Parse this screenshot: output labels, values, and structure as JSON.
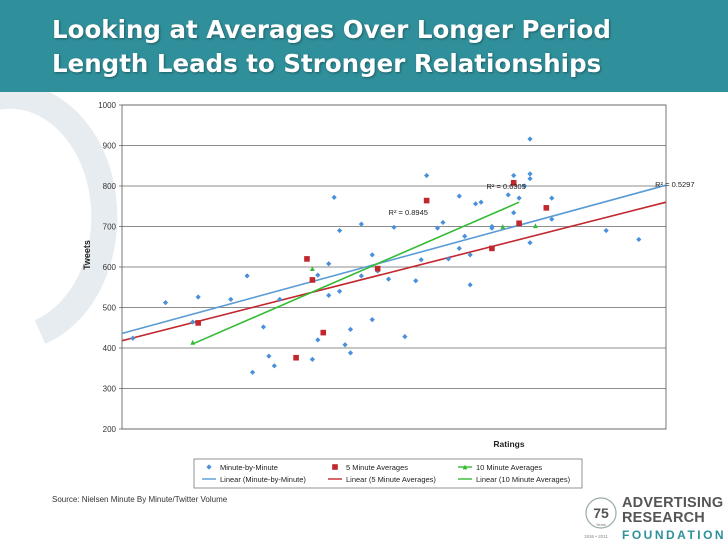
{
  "slide": {
    "title_line1": "Looking at Averages Over Longer Period",
    "title_line2": "Length Leads to Stronger Relationships",
    "source": "Source: Nielsen Minute By Minute/Twitter Volume",
    "colors": {
      "banner": "#2f8f9a",
      "minute": "#4a90d9",
      "five": "#c1272d",
      "ten": "#33bb33"
    }
  },
  "logo": {
    "line1": "ADVERTISING",
    "line2": "RESEARCH",
    "line3": "FOUNDATION",
    "badge_number": "75",
    "badge_years": "Years",
    "badge_range": "1936 • 2011"
  },
  "chart_data": {
    "type": "scatter",
    "title": "",
    "xlabel": "Ratings",
    "ylabel": "Tweets",
    "ylim": [
      200,
      1000
    ],
    "yticks": [
      "200",
      "300",
      "400",
      "500",
      "600",
      "700",
      "800",
      "900",
      "1000"
    ],
    "xlim": [
      0,
      100
    ],
    "r2_labels": [
      {
        "text": "R² = 0.5297",
        "series": "Minute-by-Minute",
        "x": 98,
        "y": 797
      },
      {
        "text": "R² = 0.6305",
        "series": "5 Minute Averages",
        "x": 67,
        "y": 792
      },
      {
        "text": "R² = 0.8945",
        "series": "10 Minute Averages",
        "x": 49,
        "y": 728
      }
    ],
    "series": [
      {
        "name": "Minute-by-Minute",
        "marker": "diamond",
        "color": "#4a90d9",
        "points": [
          [
            2,
            424
          ],
          [
            8,
            512
          ],
          [
            14,
            526
          ],
          [
            13,
            464
          ],
          [
            20,
            520
          ],
          [
            23,
            578
          ],
          [
            24,
            340
          ],
          [
            26,
            452
          ],
          [
            27,
            380
          ],
          [
            28,
            356
          ],
          [
            29,
            520
          ],
          [
            35,
            372
          ],
          [
            36,
            420
          ],
          [
            36,
            580
          ],
          [
            38,
            530
          ],
          [
            38,
            608
          ],
          [
            39,
            772
          ],
          [
            40,
            540
          ],
          [
            40,
            690
          ],
          [
            41,
            408
          ],
          [
            42,
            388
          ],
          [
            42,
            446
          ],
          [
            44,
            706
          ],
          [
            44,
            578
          ],
          [
            46,
            470
          ],
          [
            46,
            630
          ],
          [
            47,
            590
          ],
          [
            49,
            570
          ],
          [
            50,
            698
          ],
          [
            52,
            428
          ],
          [
            54,
            566
          ],
          [
            55,
            618
          ],
          [
            56,
            826
          ],
          [
            58,
            696
          ],
          [
            59,
            710
          ],
          [
            60,
            620
          ],
          [
            62,
            775
          ],
          [
            62,
            646
          ],
          [
            63,
            676
          ],
          [
            64,
            630
          ],
          [
            64,
            556
          ],
          [
            65,
            756
          ],
          [
            66,
            760
          ],
          [
            68,
            696
          ],
          [
            68,
            700
          ],
          [
            71,
            778
          ],
          [
            72,
            826
          ],
          [
            72,
            734
          ],
          [
            73,
            770
          ],
          [
            74,
            800
          ],
          [
            75,
            830
          ],
          [
            75,
            818
          ],
          [
            75,
            916
          ],
          [
            75,
            660
          ],
          [
            79,
            770
          ],
          [
            79,
            718
          ],
          [
            89,
            690
          ],
          [
            95,
            668
          ]
        ]
      },
      {
        "name": "5 Minute Averages",
        "marker": "square",
        "color": "#c1272d",
        "points": [
          [
            14,
            462
          ],
          [
            32,
            376
          ],
          [
            34,
            620
          ],
          [
            35,
            568
          ],
          [
            37,
            438
          ],
          [
            47,
            596
          ],
          [
            56,
            764
          ],
          [
            68,
            646
          ],
          [
            72,
            808
          ],
          [
            73,
            708
          ],
          [
            78,
            746
          ]
        ]
      },
      {
        "name": "10 Minute Averages",
        "marker": "triangle",
        "color": "#33bb33",
        "points": [
          [
            13,
            414
          ],
          [
            35,
            596
          ],
          [
            70,
            700
          ],
          [
            76,
            702
          ]
        ]
      }
    ],
    "trendlines": [
      {
        "name": "Linear (Minute-by-Minute)",
        "color": "#5b9bd5",
        "y_start": 436,
        "y_end": 802
      },
      {
        "name": "Linear (5 Minute Averages)",
        "color": "#c1272d",
        "y_start": 418,
        "y_end": 760
      },
      {
        "name": "Linear (10 Minute Averages)",
        "color": "#33bb33",
        "y_start": 410,
        "y_end": 760,
        "x_start": 13,
        "x_end": 73
      }
    ],
    "legend": [
      {
        "label": "Minute-by-Minute",
        "kind": "diamond",
        "color": "#4a90d9"
      },
      {
        "label": "5 Minute Averages",
        "kind": "square",
        "color": "#c1272d"
      },
      {
        "label": "10 Minute Averages",
        "kind": "line-marker",
        "color": "#33bb33"
      },
      {
        "label": "Linear (Minute-by-Minute)",
        "kind": "line",
        "color": "#5b9bd5"
      },
      {
        "label": "Linear (5 Minute Averages)",
        "kind": "line",
        "color": "#c1272d"
      },
      {
        "label": "Linear (10 Minute Averages)",
        "kind": "line",
        "color": "#33bb33"
      }
    ]
  }
}
